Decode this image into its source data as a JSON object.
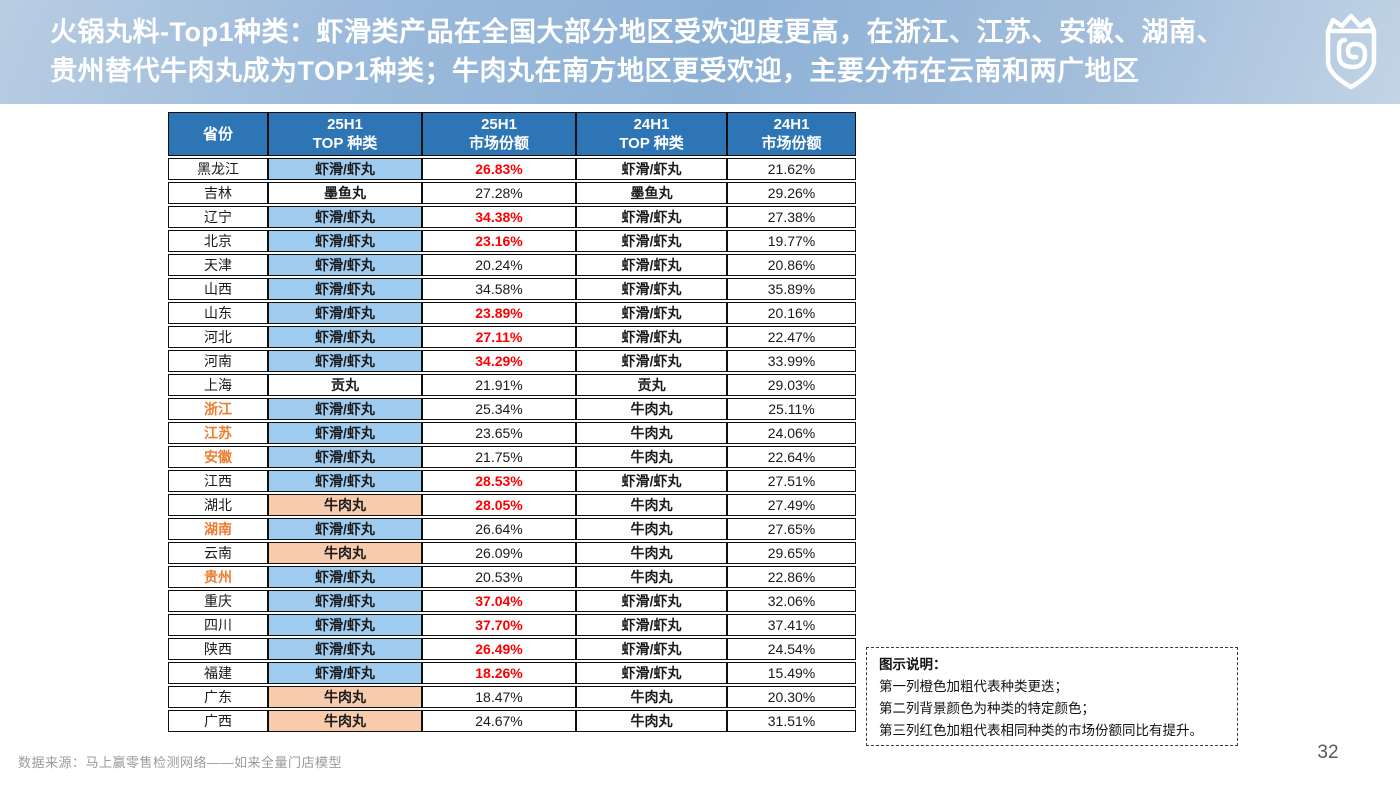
{
  "slide": {
    "title_line1": "火锅丸料-Top1种类：虾滑类产品在全国大部分地区受欢迎度更高，在浙江、江苏、安徽、湖南、",
    "title_line2": "贵州替代牛肉丸成为TOP1种类；牛肉丸在南方地区更受欢迎，主要分布在云南和两广地区",
    "source": "数据来源：马上赢零售检测网络——如来全量门店模型",
    "page_number": "32"
  },
  "logo": {
    "name": "shield-crown-logo"
  },
  "colors": {
    "header_blue": "#2E75B6",
    "shrimp_cell_blue": "#9FCBEF",
    "beef_cell_orange": "#F8CBAD",
    "share_up_red": "#FF0000",
    "province_highlight_orange": "#ED7D31",
    "banner_blue_mid": "#8DB1D6"
  },
  "legend": {
    "title": "图示说明：",
    "lines": [
      "第一列橙色加粗代表种类更迭；",
      "第二列背景颜色为种类的特定颜色；",
      "第三列红色加粗代表相同种类的市场份额同比有提升。"
    ]
  },
  "table": {
    "headers": [
      {
        "top": "省份",
        "bottom": ""
      },
      {
        "top": "25H1",
        "bottom": "TOP 种类"
      },
      {
        "top": "25H1",
        "bottom": "市场份额"
      },
      {
        "top": "24H1",
        "bottom": "TOP 种类"
      },
      {
        "top": "24H1",
        "bottom": "市场份额"
      }
    ],
    "rows": [
      {
        "province": "黑龙江",
        "hl": false,
        "top25": "虾滑/虾丸",
        "cat": "shrimp",
        "share25": "26.83%",
        "up": true,
        "top24": "虾滑/虾丸",
        "share24": "21.62%"
      },
      {
        "province": "吉林",
        "hl": false,
        "top25": "墨鱼丸",
        "cat": "none",
        "share25": "27.28%",
        "up": false,
        "top24": "墨鱼丸",
        "share24": "29.26%"
      },
      {
        "province": "辽宁",
        "hl": false,
        "top25": "虾滑/虾丸",
        "cat": "shrimp",
        "share25": "34.38%",
        "up": true,
        "top24": "虾滑/虾丸",
        "share24": "27.38%"
      },
      {
        "province": "北京",
        "hl": false,
        "top25": "虾滑/虾丸",
        "cat": "shrimp",
        "share25": "23.16%",
        "up": true,
        "top24": "虾滑/虾丸",
        "share24": "19.77%"
      },
      {
        "province": "天津",
        "hl": false,
        "top25": "虾滑/虾丸",
        "cat": "shrimp",
        "share25": "20.24%",
        "up": false,
        "top24": "虾滑/虾丸",
        "share24": "20.86%"
      },
      {
        "province": "山西",
        "hl": false,
        "top25": "虾滑/虾丸",
        "cat": "shrimp",
        "share25": "34.58%",
        "up": false,
        "top24": "虾滑/虾丸",
        "share24": "35.89%"
      },
      {
        "province": "山东",
        "hl": false,
        "top25": "虾滑/虾丸",
        "cat": "shrimp",
        "share25": "23.89%",
        "up": true,
        "top24": "虾滑/虾丸",
        "share24": "20.16%"
      },
      {
        "province": "河北",
        "hl": false,
        "top25": "虾滑/虾丸",
        "cat": "shrimp",
        "share25": "27.11%",
        "up": true,
        "top24": "虾滑/虾丸",
        "share24": "22.47%"
      },
      {
        "province": "河南",
        "hl": false,
        "top25": "虾滑/虾丸",
        "cat": "shrimp",
        "share25": "34.29%",
        "up": true,
        "top24": "虾滑/虾丸",
        "share24": "33.99%"
      },
      {
        "province": "上海",
        "hl": false,
        "top25": "贡丸",
        "cat": "none",
        "share25": "21.91%",
        "up": false,
        "top24": "贡丸",
        "share24": "29.03%"
      },
      {
        "province": "浙江",
        "hl": true,
        "top25": "虾滑/虾丸",
        "cat": "shrimp",
        "share25": "25.34%",
        "up": false,
        "top24": "牛肉丸",
        "share24": "25.11%"
      },
      {
        "province": "江苏",
        "hl": true,
        "top25": "虾滑/虾丸",
        "cat": "shrimp",
        "share25": "23.65%",
        "up": false,
        "top24": "牛肉丸",
        "share24": "24.06%"
      },
      {
        "province": "安徽",
        "hl": true,
        "top25": "虾滑/虾丸",
        "cat": "shrimp",
        "share25": "21.75%",
        "up": false,
        "top24": "牛肉丸",
        "share24": "22.64%"
      },
      {
        "province": "江西",
        "hl": false,
        "top25": "虾滑/虾丸",
        "cat": "shrimp",
        "share25": "28.53%",
        "up": true,
        "top24": "虾滑/虾丸",
        "share24": "27.51%"
      },
      {
        "province": "湖北",
        "hl": false,
        "top25": "牛肉丸",
        "cat": "beef",
        "share25": "28.05%",
        "up": true,
        "top24": "牛肉丸",
        "share24": "27.49%"
      },
      {
        "province": "湖南",
        "hl": true,
        "top25": "虾滑/虾丸",
        "cat": "shrimp",
        "share25": "26.64%",
        "up": false,
        "top24": "牛肉丸",
        "share24": "27.65%"
      },
      {
        "province": "云南",
        "hl": false,
        "top25": "牛肉丸",
        "cat": "beef",
        "share25": "26.09%",
        "up": false,
        "top24": "牛肉丸",
        "share24": "29.65%"
      },
      {
        "province": "贵州",
        "hl": true,
        "top25": "虾滑/虾丸",
        "cat": "shrimp",
        "share25": "20.53%",
        "up": false,
        "top24": "牛肉丸",
        "share24": "22.86%"
      },
      {
        "province": "重庆",
        "hl": false,
        "top25": "虾滑/虾丸",
        "cat": "shrimp",
        "share25": "37.04%",
        "up": true,
        "top24": "虾滑/虾丸",
        "share24": "32.06%"
      },
      {
        "province": "四川",
        "hl": false,
        "top25": "虾滑/虾丸",
        "cat": "shrimp",
        "share25": "37.70%",
        "up": true,
        "top24": "虾滑/虾丸",
        "share24": "37.41%"
      },
      {
        "province": "陕西",
        "hl": false,
        "top25": "虾滑/虾丸",
        "cat": "shrimp",
        "share25": "26.49%",
        "up": true,
        "top24": "虾滑/虾丸",
        "share24": "24.54%"
      },
      {
        "province": "福建",
        "hl": false,
        "top25": "虾滑/虾丸",
        "cat": "shrimp",
        "share25": "18.26%",
        "up": true,
        "top24": "虾滑/虾丸",
        "share24": "15.49%"
      },
      {
        "province": "广东",
        "hl": false,
        "top25": "牛肉丸",
        "cat": "beef",
        "share25": "18.47%",
        "up": false,
        "top24": "牛肉丸",
        "share24": "20.30%"
      },
      {
        "province": "广西",
        "hl": false,
        "top25": "牛肉丸",
        "cat": "beef",
        "share25": "24.67%",
        "up": false,
        "top24": "牛肉丸",
        "share24": "31.51%"
      }
    ]
  }
}
